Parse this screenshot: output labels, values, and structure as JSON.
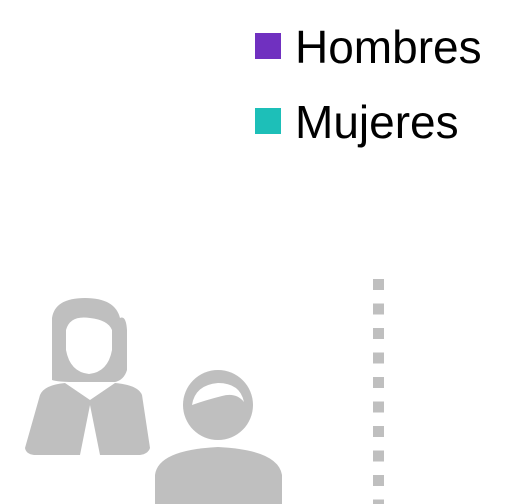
{
  "legend": [
    {
      "label": "Hombres",
      "color": "#7030c0"
    },
    {
      "label": "Mujeres",
      "color": "#1dbfb8"
    }
  ]
}
